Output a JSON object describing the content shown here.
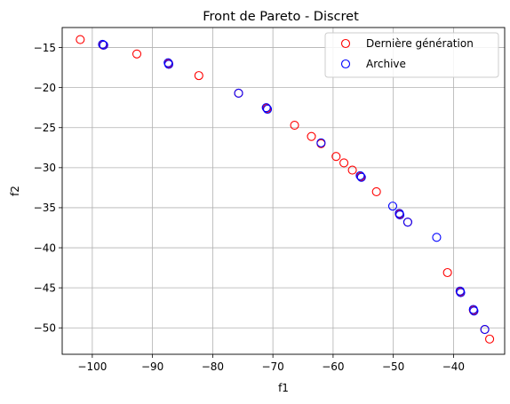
{
  "chart_data": {
    "type": "scatter",
    "title": "Front de Pareto - Discret",
    "xlabel": "f1",
    "ylabel": "f2",
    "xlim": [
      -105,
      -31.5
    ],
    "ylim": [
      -53.3,
      -12.5
    ],
    "xticks": [
      -100,
      -90,
      -80,
      -70,
      -60,
      -50,
      -40
    ],
    "yticks": [
      -15,
      -20,
      -25,
      -30,
      -35,
      -40,
      -45,
      -50
    ],
    "xtick_labels": [
      "−100",
      "−90",
      "−80",
      "−70",
      "−60",
      "−50",
      "−40"
    ],
    "ytick_labels": [
      "−15",
      "−20",
      "−25",
      "−30",
      "−35",
      "−40",
      "−45",
      "−50"
    ],
    "grid": true,
    "legend_position": "top-right",
    "series": [
      {
        "name": "Dernière génération",
        "color": "#ff0000",
        "marker": "hollow-circle",
        "points": [
          [
            -102.0,
            -14.0
          ],
          [
            -98.2,
            -14.7
          ],
          [
            -92.6,
            -15.8
          ],
          [
            -87.3,
            -17.0
          ],
          [
            -82.3,
            -18.5
          ],
          [
            -75.7,
            -20.7
          ],
          [
            -71.0,
            -22.6
          ],
          [
            -66.4,
            -24.7
          ],
          [
            -63.6,
            -26.1
          ],
          [
            -62.0,
            -27.0
          ],
          [
            -59.5,
            -28.6
          ],
          [
            -58.2,
            -29.4
          ],
          [
            -56.8,
            -30.3
          ],
          [
            -55.4,
            -31.1
          ],
          [
            -52.8,
            -33.0
          ],
          [
            -49.0,
            -35.8
          ],
          [
            -47.6,
            -36.8
          ],
          [
            -41.0,
            -43.1
          ],
          [
            -38.9,
            -45.5
          ],
          [
            -36.7,
            -47.8
          ],
          [
            -34.8,
            -50.2
          ],
          [
            -34.0,
            -51.4
          ]
        ]
      },
      {
        "name": "Archive",
        "color": "#0000ff",
        "marker": "hollow-circle",
        "points": [
          [
            -98.3,
            -14.6
          ],
          [
            -98.1,
            -14.7
          ],
          [
            -87.4,
            -16.9
          ],
          [
            -87.3,
            -17.1
          ],
          [
            -75.7,
            -20.7
          ],
          [
            -71.1,
            -22.5
          ],
          [
            -70.9,
            -22.7
          ],
          [
            -62.0,
            -26.9
          ],
          [
            -55.5,
            -31.0
          ],
          [
            -55.3,
            -31.2
          ],
          [
            -50.1,
            -34.8
          ],
          [
            -49.0,
            -35.7
          ],
          [
            -48.9,
            -35.9
          ],
          [
            -47.6,
            -36.8
          ],
          [
            -42.8,
            -38.7
          ],
          [
            -38.9,
            -45.4
          ],
          [
            -38.8,
            -45.6
          ],
          [
            -36.7,
            -47.7
          ],
          [
            -36.6,
            -47.9
          ],
          [
            -34.8,
            -50.2
          ]
        ]
      }
    ]
  }
}
